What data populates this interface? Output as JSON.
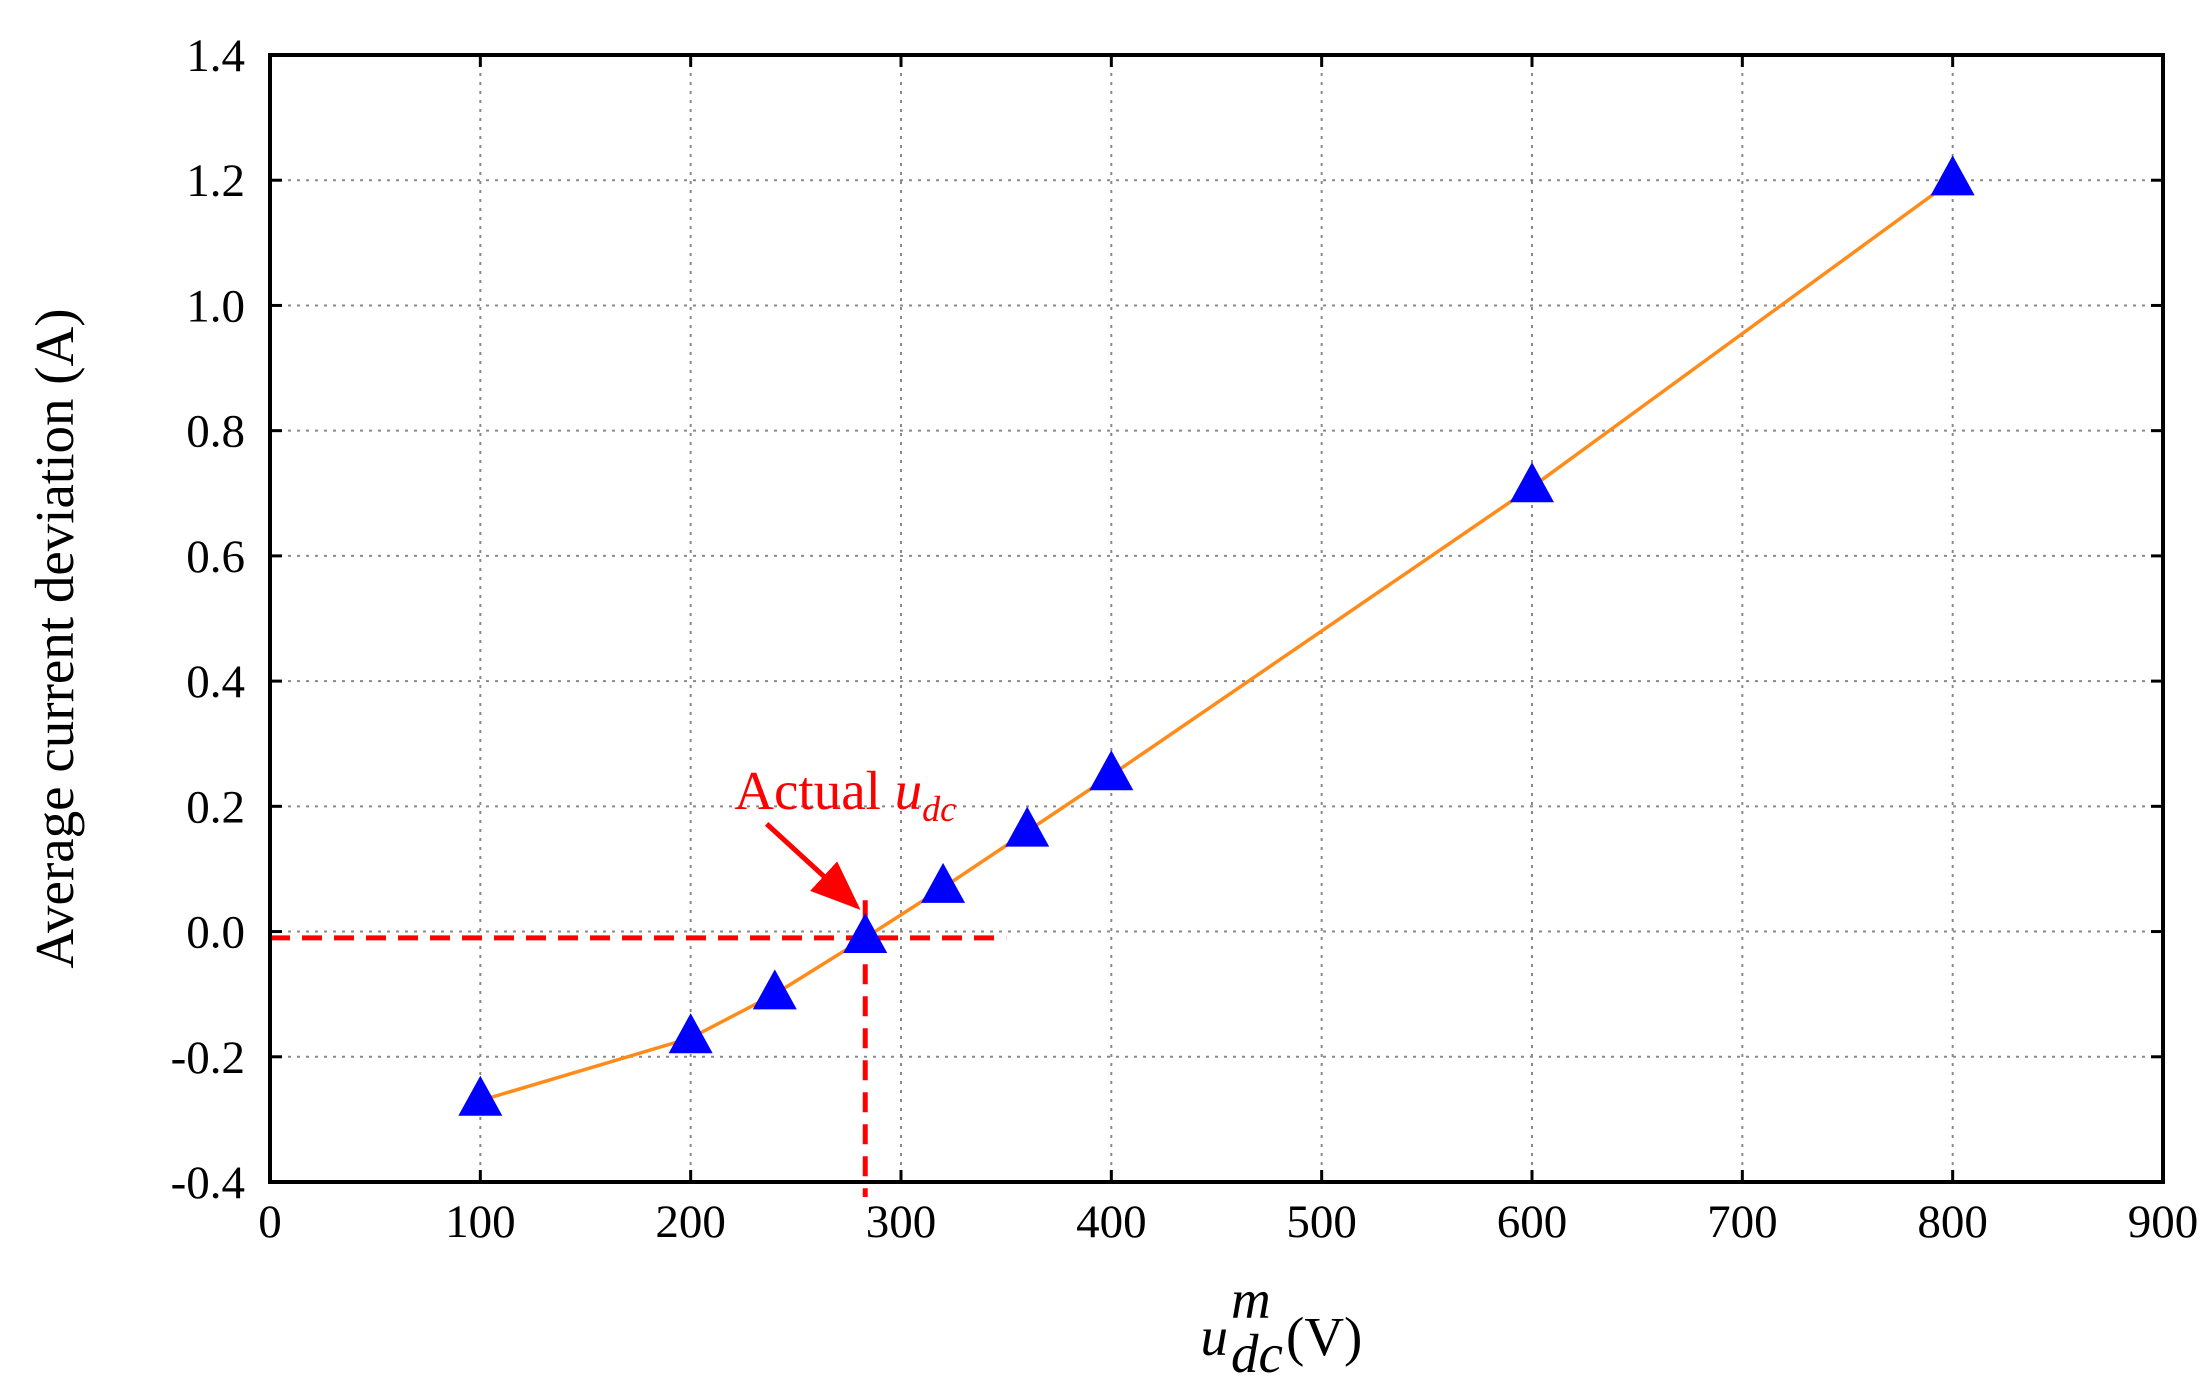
{
  "chart_data": {
    "type": "line",
    "title": "",
    "xlabel": {
      "main": "u",
      "superscript": "m",
      "subscript": "dc",
      "unit": "(V)"
    },
    "ylabel": "Average current deviation (A)",
    "xlim": [
      0,
      900
    ],
    "ylim": [
      -0.4,
      1.4
    ],
    "xticks": [
      0,
      100,
      200,
      300,
      400,
      500,
      600,
      700,
      800,
      900
    ],
    "xtick_labels": [
      "0",
      "100",
      "200",
      "300",
      "400",
      "500",
      "600",
      "700",
      "800",
      "900"
    ],
    "yticks": [
      -0.4,
      -0.2,
      0.0,
      0.2,
      0.4,
      0.6,
      0.8,
      1.0,
      1.2,
      1.4
    ],
    "ytick_labels": [
      "-0.4",
      "-0.2",
      "0.0",
      "0.2",
      "0.4",
      "0.6",
      "0.8",
      "1.0",
      "1.2",
      "1.4"
    ],
    "grid": true,
    "series": [
      {
        "name": "Average current deviation",
        "line_color": "#FF8C1A",
        "marker": "triangle",
        "marker_color": "#0000FF",
        "x": [
          100,
          200,
          240,
          283,
          320,
          360,
          400,
          600,
          800
        ],
        "y": [
          -0.27,
          -0.17,
          -0.1,
          -0.01,
          0.07,
          0.16,
          0.25,
          0.71,
          1.2
        ]
      }
    ],
    "annotation": {
      "label_main": "Actual ",
      "label_symbol": "u",
      "label_subscript": "dc",
      "color": "#FF0000",
      "text_at": [
        235,
        0.22
      ],
      "arrow_from": [
        248,
        0.18
      ],
      "arrow_to": [
        279,
        0.04
      ],
      "ref_x": 283,
      "ref_y": -0.01,
      "ref_h_xrange": [
        0,
        350
      ]
    }
  }
}
